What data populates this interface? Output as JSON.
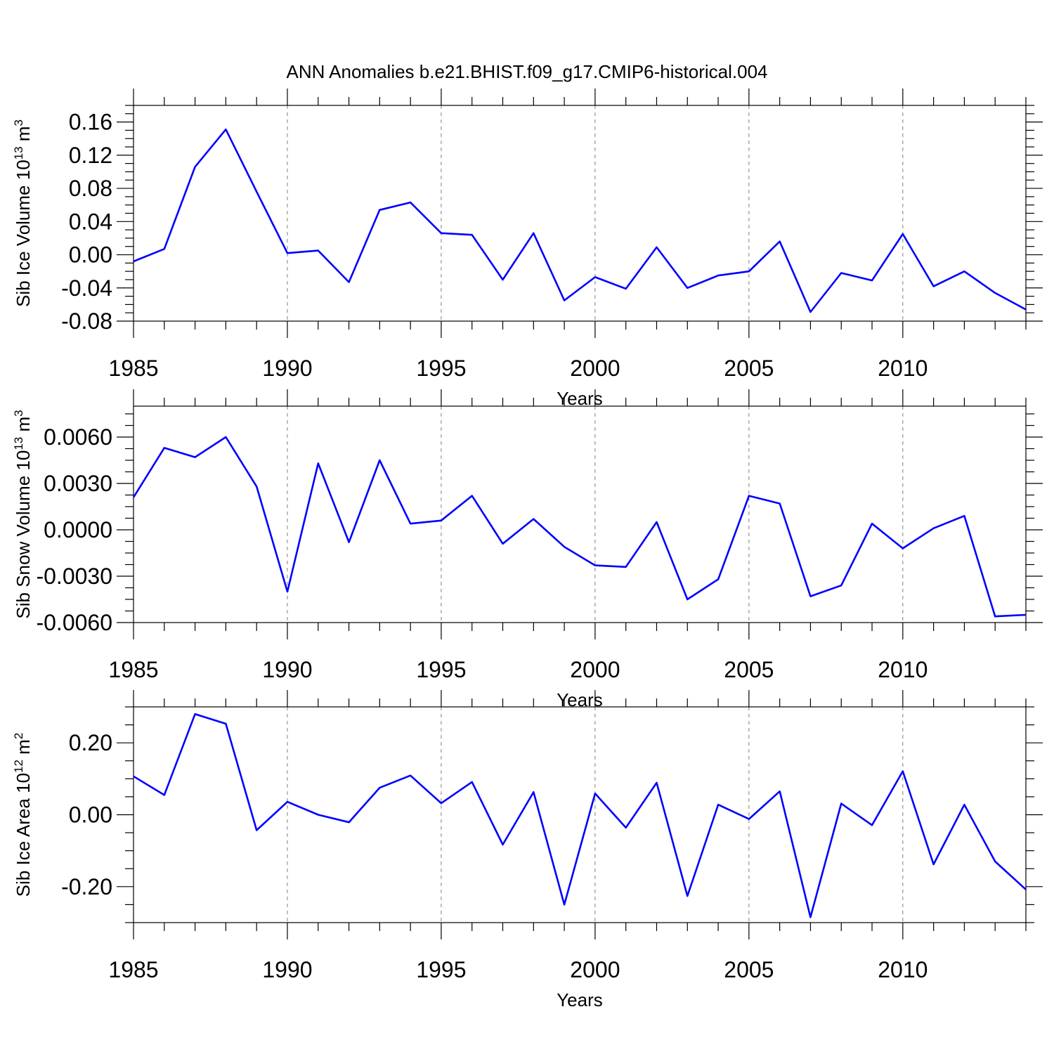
{
  "title": "ANN Anomalies b.e21.BHIST.f09_g17.CMIP6-historical.004",
  "colors": {
    "line": "#0000ff",
    "grid": "#7f7f7f",
    "axis": "#000000",
    "background": "#ffffff"
  },
  "chart_data": [
    {
      "type": "line",
      "xlabel": "Years",
      "ylabel": {
        "text": "Sib Ice Volume 10",
        "sup": "13",
        "unit": " m",
        "unit_sup": "3"
      },
      "x": [
        1985,
        1986,
        1987,
        1988,
        1989,
        1990,
        1991,
        1992,
        1993,
        1994,
        1995,
        1996,
        1997,
        1998,
        1999,
        2000,
        2001,
        2002,
        2003,
        2004,
        2005,
        2006,
        2007,
        2008,
        2009,
        2010,
        2011,
        2012,
        2013,
        2014
      ],
      "series": [
        {
          "values": [
            -0.008,
            0.007,
            0.106,
            0.151,
            0.076,
            0.002,
            0.005,
            -0.033,
            0.054,
            0.063,
            0.026,
            0.024,
            -0.03,
            0.026,
            -0.055,
            -0.027,
            -0.041,
            0.009,
            -0.04,
            -0.025,
            -0.02,
            0.016,
            -0.069,
            -0.022,
            -0.031,
            0.025,
            -0.038,
            -0.02,
            -0.046,
            -0.066
          ]
        }
      ],
      "xlim": [
        1985,
        2014
      ],
      "ylim": [
        -0.08,
        0.18
      ],
      "yticks": [
        -0.08,
        -0.04,
        0.0,
        0.04,
        0.08,
        0.12,
        0.16
      ],
      "ytick_labels": [
        "-0.08",
        "-0.04",
        "0.00",
        "0.04",
        "0.08",
        "0.12",
        "0.16"
      ],
      "xticks": [
        1985,
        1990,
        1995,
        2000,
        2005,
        2010
      ],
      "xtick_labels": [
        "1985",
        "1990",
        "1995",
        "2000",
        "2005",
        "2010"
      ],
      "grid": "vertical dashed at major x ticks"
    },
    {
      "type": "line",
      "xlabel": "Years",
      "ylabel": {
        "text": "Sib Snow Volume 10",
        "sup": "13",
        "unit": " m",
        "unit_sup": "3"
      },
      "x": [
        1985,
        1986,
        1987,
        1988,
        1989,
        1990,
        1991,
        1992,
        1993,
        1994,
        1995,
        1996,
        1997,
        1998,
        1999,
        2000,
        2001,
        2002,
        2003,
        2004,
        2005,
        2006,
        2007,
        2008,
        2009,
        2010,
        2011,
        2012,
        2013,
        2014
      ],
      "series": [
        {
          "values": [
            0.0021,
            0.0053,
            0.0047,
            0.006,
            0.0028,
            -0.004,
            0.0043,
            -0.0008,
            0.0045,
            0.0004,
            0.0006,
            0.0022,
            -0.0009,
            0.0007,
            -0.0011,
            -0.0023,
            -0.0024,
            0.0005,
            -0.0045,
            -0.0032,
            0.0022,
            0.0017,
            -0.0043,
            -0.0036,
            0.0004,
            -0.0012,
            0.0001,
            0.0009,
            -0.0056,
            -0.0055
          ]
        }
      ],
      "xlim": [
        1985,
        2014
      ],
      "ylim": [
        -0.006,
        0.008
      ],
      "yticks": [
        -0.006,
        -0.003,
        0.0,
        0.003,
        0.006
      ],
      "ytick_labels": [
        "-0.0060",
        "-0.0030",
        "0.0000",
        "0.0030",
        "0.0060"
      ],
      "xticks": [
        1985,
        1990,
        1995,
        2000,
        2005,
        2010
      ],
      "xtick_labels": [
        "1985",
        "1990",
        "1995",
        "2000",
        "2005",
        "2010"
      ],
      "grid": "vertical dashed at major x ticks"
    },
    {
      "type": "line",
      "xlabel": "Years",
      "ylabel": {
        "text": "Sib Ice Area 10",
        "sup": "12",
        "unit": " m",
        "unit_sup": "2"
      },
      "x": [
        1985,
        1986,
        1987,
        1988,
        1989,
        1990,
        1991,
        1992,
        1993,
        1994,
        1995,
        1996,
        1997,
        1998,
        1999,
        2000,
        2001,
        2002,
        2003,
        2004,
        2005,
        2006,
        2007,
        2008,
        2009,
        2010,
        2011,
        2012,
        2013,
        2014
      ],
      "series": [
        {
          "values": [
            0.107,
            0.055,
            0.28,
            0.253,
            -0.043,
            0.036,
            0.0,
            -0.021,
            0.075,
            0.109,
            0.032,
            0.091,
            -0.083,
            0.063,
            -0.25,
            0.059,
            -0.036,
            0.089,
            -0.226,
            0.028,
            -0.012,
            0.065,
            -0.285,
            0.031,
            -0.029,
            0.121,
            -0.138,
            0.028,
            -0.13,
            -0.208
          ]
        }
      ],
      "xlim": [
        1985,
        2014
      ],
      "ylim": [
        -0.3,
        0.3
      ],
      "yticks": [
        -0.2,
        0.0,
        0.2
      ],
      "ytick_labels": [
        "-0.20",
        "0.00",
        "0.20"
      ],
      "xticks": [
        1985,
        1990,
        1995,
        2000,
        2005,
        2010
      ],
      "xtick_labels": [
        "1985",
        "1990",
        "1995",
        "2000",
        "2005",
        "2010"
      ],
      "grid": "vertical dashed at major x ticks"
    }
  ]
}
